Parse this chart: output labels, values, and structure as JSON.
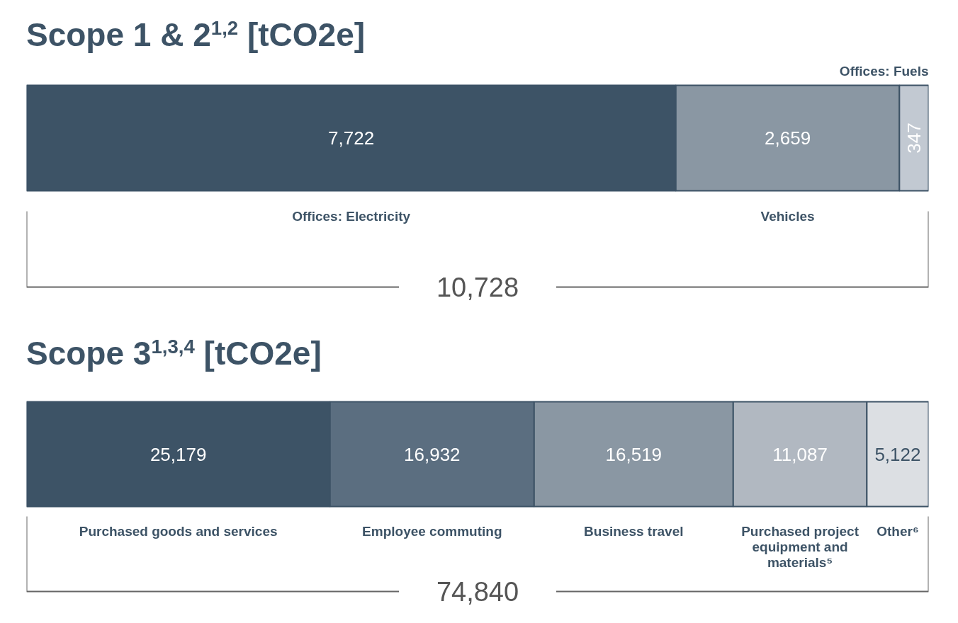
{
  "chart_data": [
    {
      "type": "bar",
      "orientation": "horizontal",
      "stacked": true,
      "title": "Scope 1 & 2$^{1,2}$ [tCO2e]",
      "categories": [
        null
      ],
      "series": [
        {
          "name": "Offices: Electricity",
          "color": "#3d5366",
          "values": [
            7722
          ],
          "value_labels": [
            "7,722"
          ]
        },
        {
          "name": "Vehicles",
          "color": "#8a97a3",
          "values": [
            2659
          ],
          "value_labels": [
            "2,659"
          ]
        },
        {
          "name": "Offices: Fuels",
          "color": "#c2c9d2",
          "values": [
            347
          ],
          "value_labels": [
            "347"
          ]
        }
      ],
      "totals": [
        "10,728"
      ]
    },
    {
      "type": "bar",
      "orientation": "horizontal",
      "stacked": true,
      "title": "Scope 3$^{1,3,4}$ [tCO2e]",
      "categories": [
        null
      ],
      "series": [
        {
          "name": "Purchased goods and services",
          "color": "#3d5366",
          "values": [
            25179
          ],
          "value_labels": [
            "25,179"
          ]
        },
        {
          "name": "Employee commuting",
          "color": "#5b6e80",
          "values": [
            16932
          ],
          "value_labels": [
            "16,932"
          ]
        },
        {
          "name": "Business travel",
          "color": "#8a97a3",
          "values": [
            16519
          ],
          "value_labels": [
            "16,519"
          ]
        },
        {
          "name": "Purchased project equipment and materials⁵",
          "color": "#b1b8c1",
          "values": [
            11087
          ],
          "value_labels": [
            "11,087"
          ]
        },
        {
          "name": "Other⁶",
          "color": "#dcdfe3",
          "values": [
            5122
          ],
          "value_labels": [
            "5,122"
          ]
        }
      ],
      "totals": [
        "74,840"
      ]
    }
  ]
}
